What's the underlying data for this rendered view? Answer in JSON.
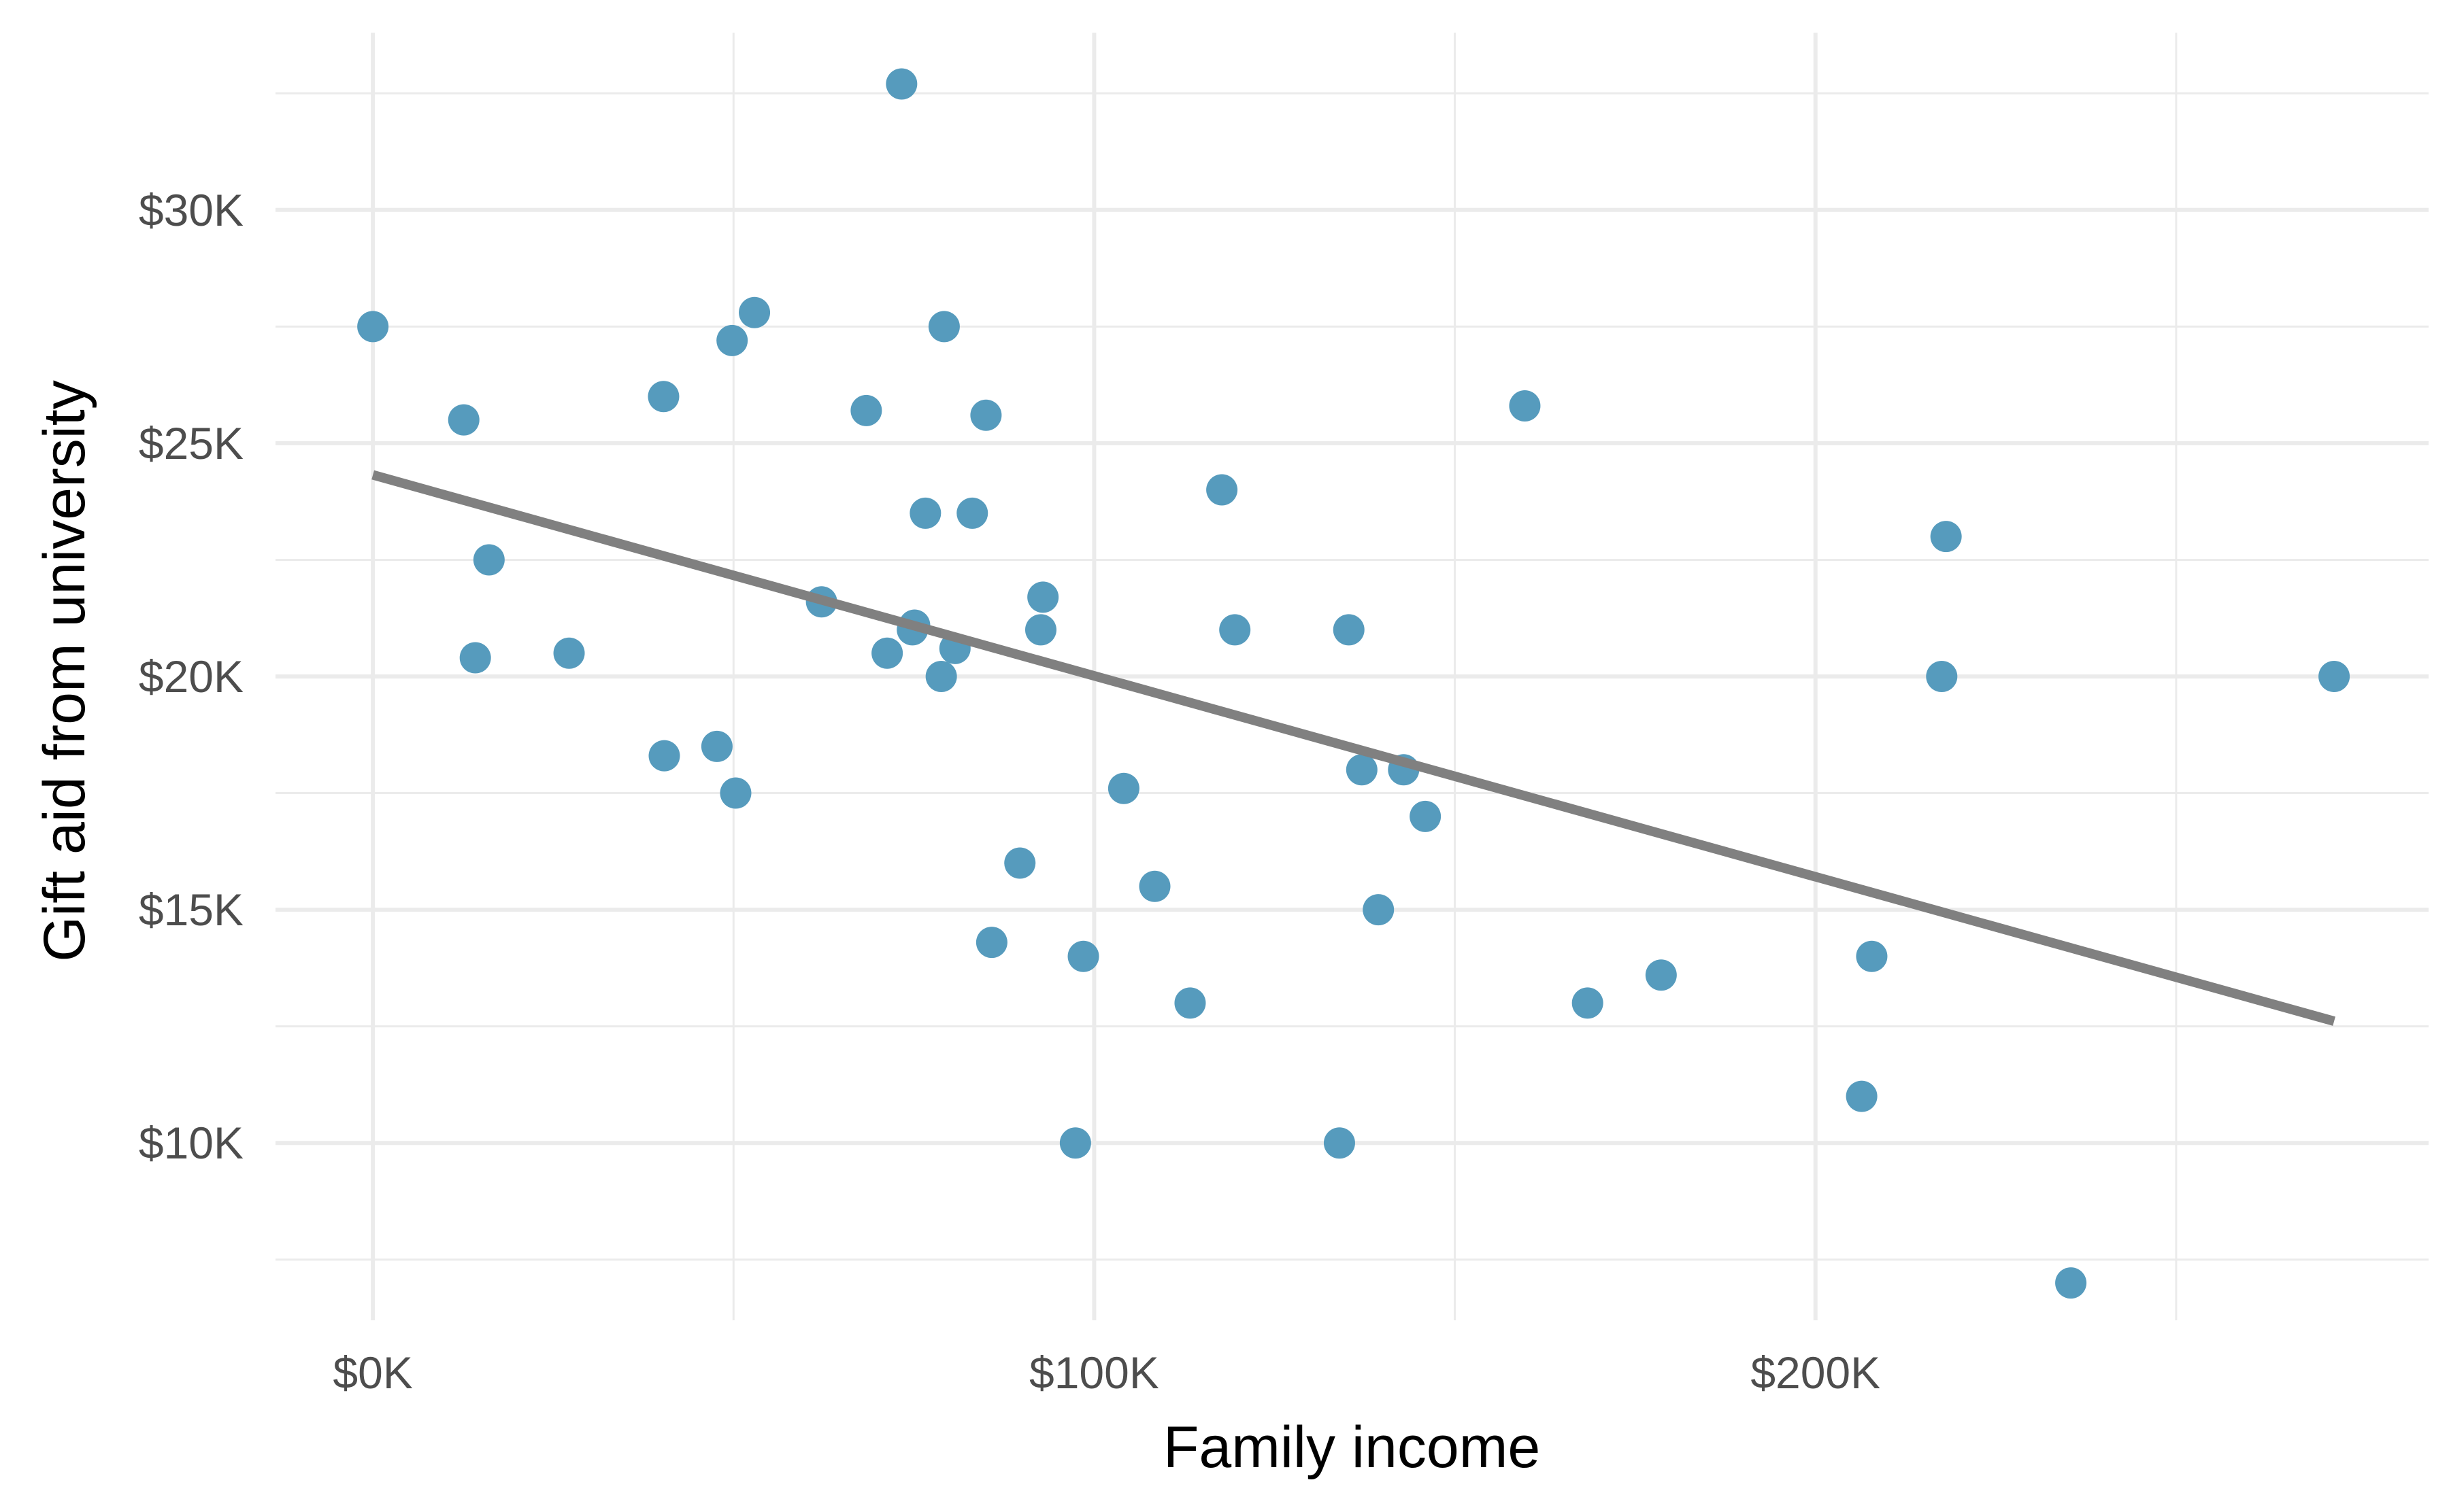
{
  "chart_data": {
    "type": "scatter",
    "title": "",
    "xlabel": "Family income",
    "ylabel": "Gift aid from university",
    "xlim": [
      -13.5,
      285
    ],
    "ylim": [
      6.2,
      33.8
    ],
    "x_ticks": [
      0,
      100,
      200
    ],
    "x_tick_labels": [
      "$0K",
      "$100K",
      "$200K"
    ],
    "x_minor_ticks": [
      50,
      150,
      250
    ],
    "y_ticks": [
      10,
      15,
      20,
      25,
      30
    ],
    "y_tick_labels": [
      "$10K",
      "$15K",
      "$20K",
      "$25K",
      "$30K"
    ],
    "y_minor_ticks": [
      7.5,
      12.5,
      17.5,
      22.5,
      27.5,
      32.5
    ],
    "grid": true,
    "point_color": "#569bbd",
    "line_color": "#808080",
    "points": {
      "x": [
        0,
        12.6,
        14.2,
        16.1,
        27.2,
        40.3,
        40.4,
        47.7,
        49.8,
        50.3,
        52.9,
        62.2,
        68.4,
        71.3,
        73.3,
        74.8,
        75.1,
        76.6,
        78.8,
        79.2,
        80.7,
        83.1,
        85.0,
        85.8,
        89.7,
        92.6,
        92.9,
        97.4,
        98.5,
        104.1,
        108.4,
        113.3,
        117.7,
        119.5,
        135.3,
        134.0,
        137.1,
        139.4,
        142.9,
        145.9,
        159.7,
        168.4,
        178.6,
        206.4,
        207.8,
        217.5,
        218.1,
        235.4,
        271.9
      ],
      "y": [
        27.5,
        25.5,
        20.4,
        22.5,
        20.5,
        26.0,
        18.3,
        18.5,
        27.2,
        17.5,
        27.8,
        21.6,
        25.7,
        20.5,
        32.7,
        21.0,
        21.1,
        23.5,
        20.0,
        27.5,
        20.6,
        23.5,
        25.6,
        14.3,
        16.0,
        21.0,
        21.7,
        10.0,
        14.0,
        17.6,
        15.5,
        13.0,
        24.0,
        21.0,
        21.0,
        10.0,
        18.0,
        15.0,
        18.0,
        17.0,
        25.8,
        13.0,
        13.6,
        11.0,
        14.0,
        20.0,
        23.0,
        7.0,
        20.0
      ]
    },
    "fit_line": {
      "x": [
        0,
        271.9
      ],
      "y": [
        24.32,
        12.61
      ]
    }
  }
}
